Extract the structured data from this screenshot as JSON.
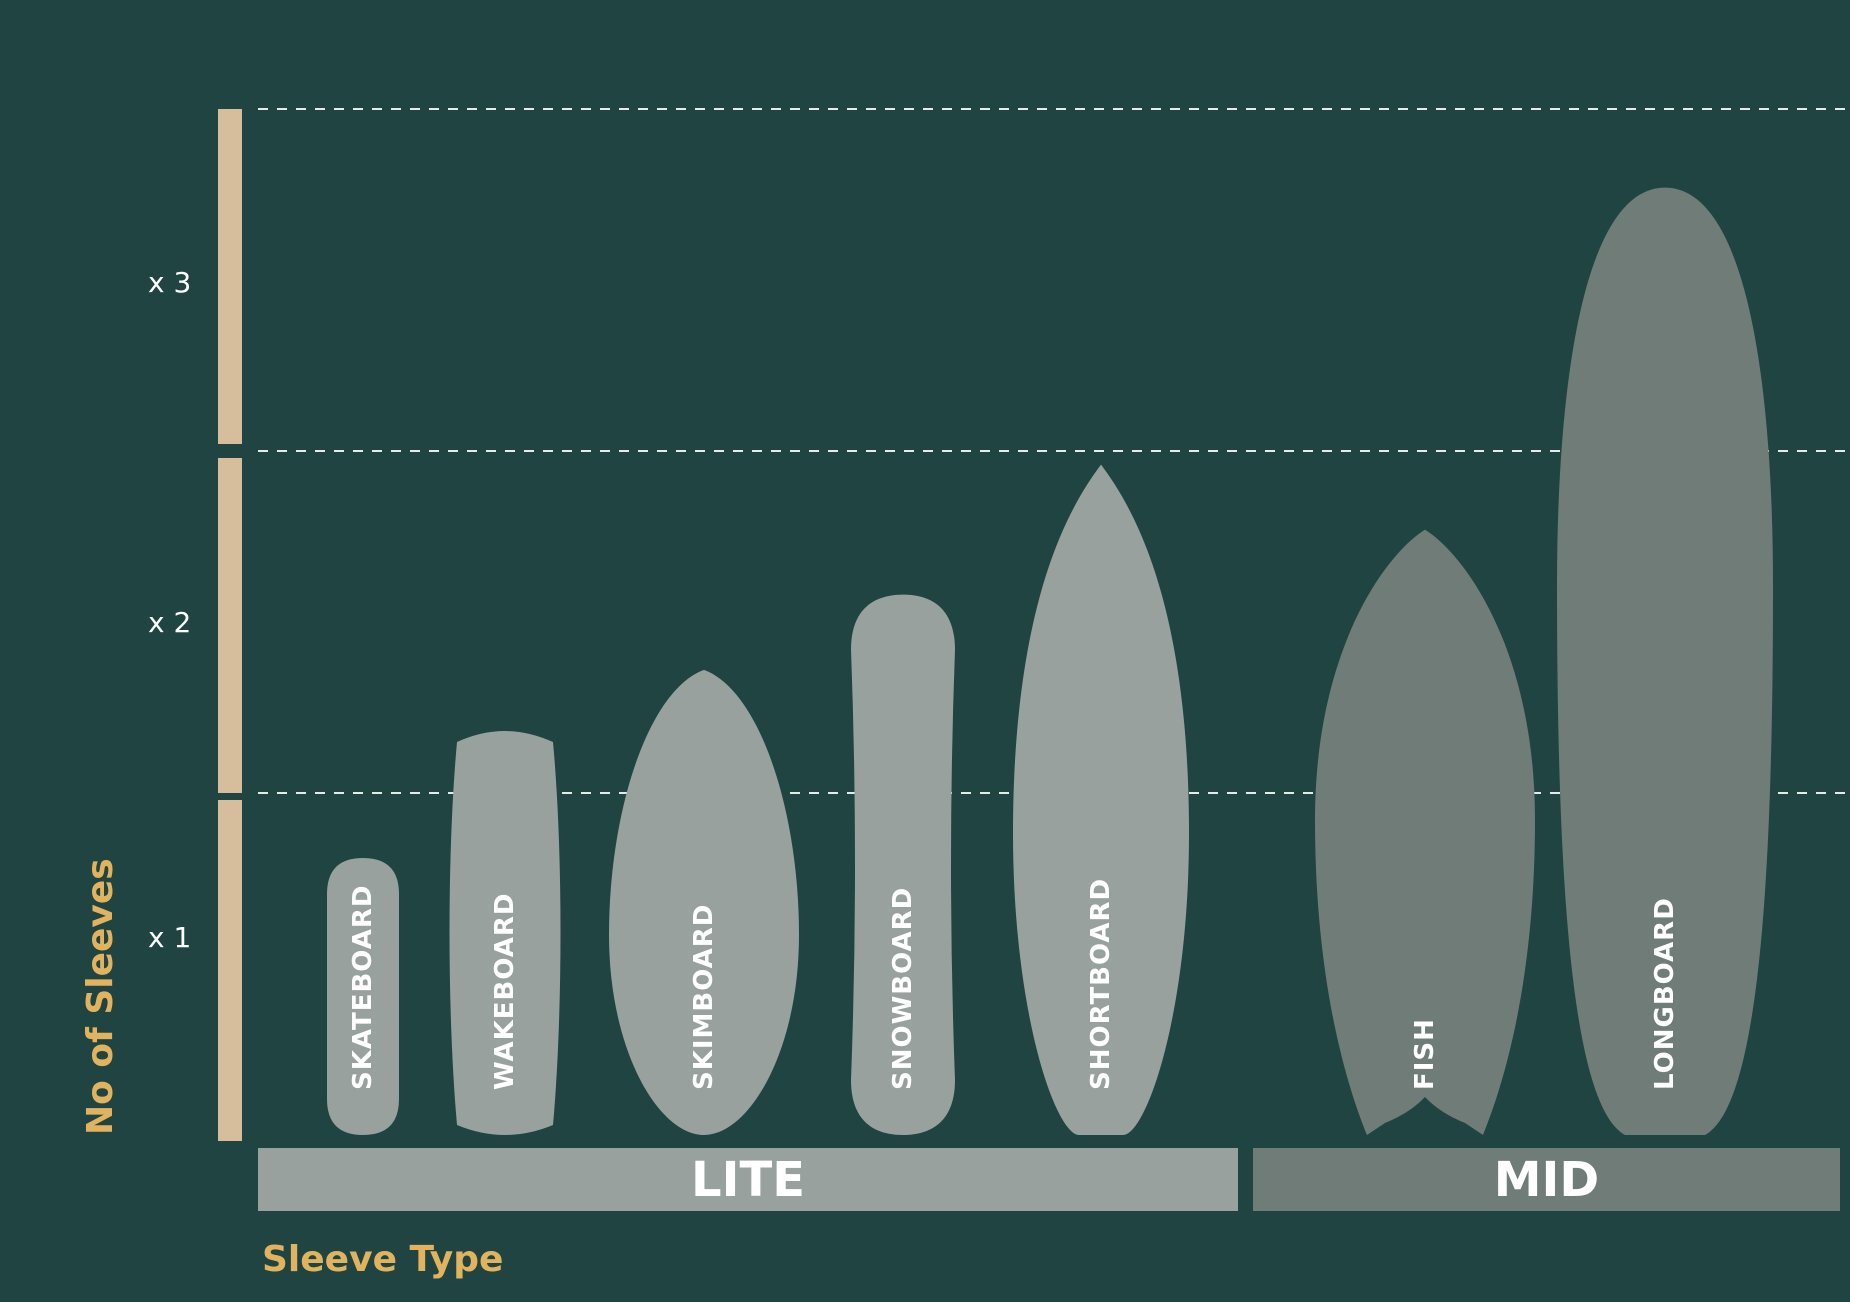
{
  "colors": {
    "background": "#1f4442",
    "axis_bar": "#d6bd9b",
    "gridline": "#e6ebea",
    "lite": "#98a19e",
    "mid": "#6f7c77",
    "text": "#ffffff",
    "axis_title": "#e2b35e"
  },
  "chart_data": {
    "type": "bar",
    "xlabel": "Sleeve Type",
    "ylabel": "No of Sleeves",
    "ylim": [
      0,
      3
    ],
    "y_ticks": [
      {
        "value": 1,
        "label": "x 1"
      },
      {
        "value": 2,
        "label": "x 2"
      },
      {
        "value": 3,
        "label": "x 3"
      }
    ],
    "grid": true,
    "groups": [
      {
        "name": "LITE",
        "items": [
          "SKATEBOARD",
          "WAKEBOARD",
          "SKIMBOARD",
          "SNOWBOARD",
          "SHORTBOARD"
        ]
      },
      {
        "name": "MID",
        "items": [
          "FISH",
          "LONGBOARD"
        ]
      }
    ],
    "categories": [
      "SKATEBOARD",
      "WAKEBOARD",
      "SKIMBOARD",
      "SNOWBOARD",
      "SHORTBOARD",
      "FISH",
      "LONGBOARD"
    ],
    "values": [
      0.81,
      1.19,
      1.36,
      1.58,
      1.96,
      1.77,
      2.77
    ],
    "board_shapes": [
      "skateboard",
      "wakeboard",
      "skimboard",
      "snowboard",
      "shortboard",
      "fish",
      "longboard"
    ]
  }
}
